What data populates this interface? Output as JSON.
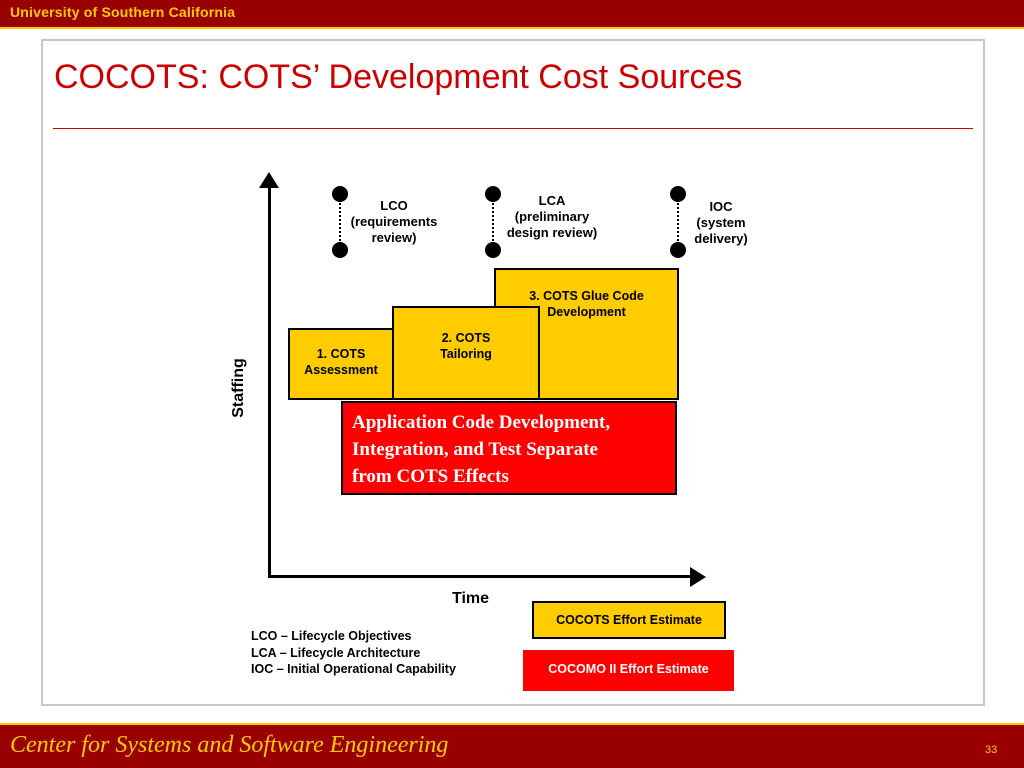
{
  "header": {
    "institution": "University of Southern California"
  },
  "slide": {
    "title": "COCOTS: COTS’ Development Cost Sources"
  },
  "diagram": {
    "y_axis_label": "Staffing",
    "x_axis_label": "Time",
    "milestones": [
      {
        "lines": [
          "LCO",
          "(requirements",
          "review)"
        ]
      },
      {
        "lines": [
          "LCA",
          "(preliminary",
          "design review)"
        ]
      },
      {
        "lines": [
          "IOC",
          "(system",
          "delivery)"
        ]
      }
    ],
    "boxes": [
      {
        "lines": [
          "1. COTS",
          "Assessment"
        ]
      },
      {
        "lines": [
          "2. COTS",
          "Tailoring"
        ]
      },
      {
        "lines": [
          "3. COTS Glue Code",
          "Development"
        ]
      }
    ],
    "app_code_box": {
      "lines": [
        "Application Code Development,",
        "Integration, and Test Separate",
        "from COTS Effects"
      ]
    }
  },
  "legend": {
    "cocots": "COCOTS Effort Estimate",
    "cocomo": "COCOMO II Effort Estimate",
    "colors": {
      "cocots": "#ffcc00",
      "cocomo": "#ff0000"
    }
  },
  "abbreviations": [
    "LCO – Lifecycle Objectives",
    "LCA – Lifecycle Architecture",
    "IOC – Initial Operational Capability"
  ],
  "footer": {
    "text": "Center for Systems and Software Engineering",
    "page": "33"
  },
  "colors": {
    "usc_cardinal": "#990000",
    "usc_gold": "#ffcc00",
    "title_red": "#cc0000"
  }
}
